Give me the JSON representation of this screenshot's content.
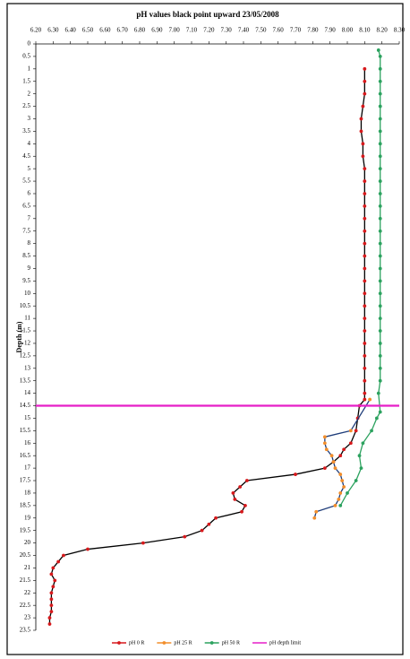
{
  "chart_data": {
    "type": "scatter",
    "title": "pH values black point upward 23/05/2008",
    "y_label": "Depth (m)",
    "xlim": [
      6.2,
      8.3
    ],
    "xticks": [
      {
        "value": 6.2,
        "label": "6.20"
      },
      {
        "value": 6.3,
        "label": "6.30"
      },
      {
        "value": 6.4,
        "label": "6.40"
      },
      {
        "value": 6.5,
        "label": "6.50"
      },
      {
        "value": 6.6,
        "label": "6.60"
      },
      {
        "value": 6.7,
        "label": "6.70"
      },
      {
        "value": 6.8,
        "label": "6.80"
      },
      {
        "value": 6.9,
        "label": "6.90"
      },
      {
        "value": 7.0,
        "label": "7.00"
      },
      {
        "value": 7.1,
        "label": "7.10"
      },
      {
        "value": 7.2,
        "label": "7.20"
      },
      {
        "value": 7.3,
        "label": "7.30"
      },
      {
        "value": 7.4,
        "label": "7.40"
      },
      {
        "value": 7.5,
        "label": "7.50"
      },
      {
        "value": 7.6,
        "label": "7.60"
      },
      {
        "value": 7.7,
        "label": "7.70"
      },
      {
        "value": 7.8,
        "label": "7.80"
      },
      {
        "value": 7.9,
        "label": "7.90"
      },
      {
        "value": 8.0,
        "label": "8.00"
      },
      {
        "value": 8.1,
        "label": "8.10"
      },
      {
        "value": 8.2,
        "label": "8.20"
      },
      {
        "value": 8.3,
        "label": "8.30"
      }
    ],
    "ylim": [
      0,
      23.5
    ],
    "yticks": [
      0,
      0.5,
      1,
      1.5,
      2,
      2.5,
      3,
      3.5,
      4,
      4.5,
      5,
      5.5,
      6,
      6.5,
      7,
      7.5,
      8,
      8.5,
      9,
      9.5,
      10,
      10.5,
      11,
      11.5,
      12,
      12.5,
      13,
      13.5,
      14,
      14.5,
      15,
      15.5,
      16,
      16.5,
      17,
      17.5,
      18,
      18.5,
      19,
      19.5,
      20,
      20.5,
      21,
      21.5,
      22,
      22.5,
      23,
      23.5
    ],
    "y_inverted": true,
    "legend": "bottom",
    "series": [
      {
        "name": "pH 0 R",
        "color": "#d7191c",
        "line_color": "#000000",
        "x": [
          8.1,
          8.1,
          8.1,
          8.09,
          8.08,
          8.08,
          8.09,
          8.09,
          8.1,
          8.1,
          8.1,
          8.1,
          8.1,
          8.1,
          8.1,
          8.1,
          8.1,
          8.1,
          8.1,
          8.1,
          8.1,
          8.1,
          8.1,
          8.1,
          8.1,
          8.1,
          8.1,
          8.1,
          8.07,
          8.06,
          8.05,
          8.02,
          7.98,
          7.96,
          7.92,
          7.87,
          7.7,
          7.42,
          7.38,
          7.34,
          7.35,
          7.41,
          7.39,
          7.24,
          7.2,
          7.16,
          7.06,
          6.82,
          6.5,
          6.36,
          6.33,
          6.3,
          6.29,
          6.31,
          6.3,
          6.29,
          6.29,
          6.29,
          6.29,
          6.28,
          6.28
        ],
        "y": [
          1,
          1.5,
          2,
          2.5,
          3,
          3.5,
          4,
          4.5,
          5,
          5.5,
          6,
          6.5,
          7,
          7.5,
          8,
          8.5,
          9,
          9.5,
          10,
          10.5,
          11,
          11.5,
          12,
          12.5,
          13,
          13.5,
          14,
          14.25,
          14.5,
          15,
          15.5,
          16,
          16.25,
          16.5,
          16.75,
          17,
          17.25,
          17.5,
          17.75,
          18,
          18.25,
          18.5,
          18.75,
          19,
          19.25,
          19.5,
          19.75,
          20,
          20.25,
          20.5,
          20.75,
          21,
          21.25,
          21.5,
          21.75,
          22,
          22.25,
          22.5,
          22.75,
          23,
          23.25
        ]
      },
      {
        "name": "pH 25 R",
        "color": "#f28e2b",
        "line_color": "#1f3d7a",
        "x": [
          8.13,
          8.02,
          7.87,
          7.87,
          7.88,
          7.91,
          7.92,
          7.93,
          7.96,
          7.97,
          7.98,
          7.96,
          7.95,
          7.93,
          7.82,
          7.81
        ],
        "y": [
          14.25,
          15.5,
          15.75,
          16,
          16.25,
          16.5,
          16.75,
          17,
          17.25,
          17.5,
          17.75,
          18,
          18.25,
          18.5,
          18.75,
          19
        ]
      },
      {
        "name": "pH 50 R",
        "color": "#2ca25f",
        "line_color": "#2ca25f",
        "x": [
          8.18,
          8.19,
          8.19,
          8.19,
          8.19,
          8.19,
          8.19,
          8.19,
          8.19,
          8.19,
          8.19,
          8.19,
          8.19,
          8.19,
          8.19,
          8.19,
          8.19,
          8.19,
          8.19,
          8.19,
          8.19,
          8.19,
          8.19,
          8.19,
          8.19,
          8.19,
          8.19,
          8.19,
          8.18,
          8.19,
          8.17,
          8.14,
          8.09,
          8.07,
          8.08,
          8.05,
          8.0,
          7.96
        ],
        "y": [
          0.25,
          0.5,
          1,
          1.5,
          2,
          2.5,
          3,
          3.5,
          4,
          4.5,
          5,
          5.5,
          6,
          6.5,
          7,
          7.5,
          8,
          8.5,
          9,
          9.5,
          10,
          10.5,
          11,
          11.5,
          12,
          12.5,
          13,
          13.5,
          14,
          14.75,
          15,
          15.5,
          16,
          16.5,
          17,
          17.5,
          18,
          18.5
        ]
      },
      {
        "name": "pH depth limit",
        "color": "#e61ec8",
        "line_color": "#e61ec8",
        "markers": false,
        "x": [
          6.2,
          8.3
        ],
        "y": [
          14.5,
          14.5
        ]
      }
    ]
  }
}
